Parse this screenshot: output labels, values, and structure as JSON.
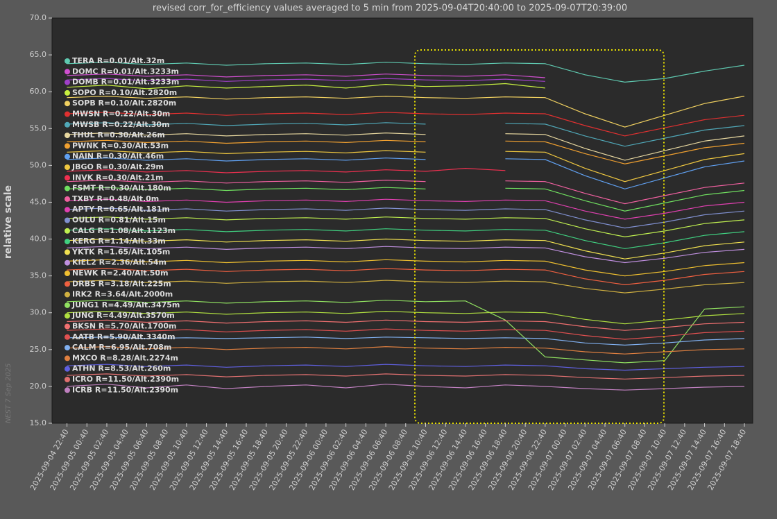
{
  "chart_data": {
    "type": "line",
    "title": "revised corr_for_efficiency values averaged to 5 min from 2025-09-04T20:40:00 to 2025-09-07T20:39:00",
    "y_label": "relative scale",
    "watermark": "NEST 7 Sep 2025",
    "xlim": [
      "2025-09-04 21:10",
      "2025-09-07 19:30"
    ],
    "ylim": [
      15,
      70
    ],
    "yticks": [
      {
        "value": 15,
        "label": "15.0"
      },
      {
        "value": 20,
        "label": "20.0"
      },
      {
        "value": 25,
        "label": "25.0"
      },
      {
        "value": 30,
        "label": "30.0"
      },
      {
        "value": 35,
        "label": "35.0"
      },
      {
        "value": 40,
        "label": "40.0"
      },
      {
        "value": 45,
        "label": "45.0"
      },
      {
        "value": 50,
        "label": "50.0"
      },
      {
        "value": 55,
        "label": "55.0"
      },
      {
        "value": 60,
        "label": "60.0"
      },
      {
        "value": 65,
        "label": "65.0"
      },
      {
        "value": 70,
        "label": "70.0"
      }
    ],
    "xticks": [
      "2025-09-04 22:40",
      "2025-09-05 00:40",
      "2025-09-05 02:40",
      "2025-09-05 04:40",
      "2025-09-05 06:40",
      "2025-09-05 08:40",
      "2025-09-05 10:40",
      "2025-09-05 12:40",
      "2025-09-05 14:40",
      "2025-09-05 16:40",
      "2025-09-05 18:40",
      "2025-09-05 20:40",
      "2025-09-05 22:40",
      "2025-09-06 00:40",
      "2025-09-06 02:40",
      "2025-09-06 04:40",
      "2025-09-06 06:40",
      "2025-09-06 08:40",
      "2025-09-06 10:40",
      "2025-09-06 12:40",
      "2025-09-06 14:40",
      "2025-09-06 16:40",
      "2025-09-06 18:40",
      "2025-09-06 20:40",
      "2025-09-06 22:40",
      "2025-09-07 00:40",
      "2025-09-07 02:40",
      "2025-09-07 04:40",
      "2025-09-07 06:40",
      "2025-09-07 08:40",
      "2025-09-07 10:40",
      "2025-09-07 12:40",
      "2025-09-07 14:40",
      "2025-09-07 16:40",
      "2025-09-07 18:40"
    ],
    "x": [
      "2025-09-04 22:40",
      "2025-09-05 02:40",
      "2025-09-05 06:40",
      "2025-09-05 10:40",
      "2025-09-05 14:40",
      "2025-09-05 18:40",
      "2025-09-05 22:40",
      "2025-09-06 02:40",
      "2025-09-06 06:40",
      "2025-09-06 10:40",
      "2025-09-06 14:40",
      "2025-09-06 18:40",
      "2025-09-06 22:40",
      "2025-09-07 02:40",
      "2025-09-07 06:40",
      "2025-09-07 10:40",
      "2025-09-07 14:40",
      "2025-09-07 18:40"
    ],
    "series": [
      {
        "name": "TERA R=0.01/Alt.32m",
        "color": "#5fc9b0",
        "values": [
          63.8,
          64.0,
          63.7,
          63.9,
          63.6,
          63.8,
          63.9,
          63.7,
          64.0,
          63.8,
          63.7,
          63.9,
          63.8,
          62.3,
          61.3,
          61.8,
          62.8,
          63.6
        ]
      },
      {
        "name": "DOMC R=0.01/Alt.3233m",
        "color": "#d04fd0",
        "values": [
          62.2,
          62.4,
          62.1,
          62.3,
          62.0,
          62.2,
          62.3,
          62.1,
          62.4,
          62.2,
          62.1,
          62.3,
          61.9,
          null,
          null,
          null,
          null,
          null
        ]
      },
      {
        "name": "DOMB R=0.01/Alt.3233m",
        "color": "#a040c8",
        "values": [
          61.6,
          61.8,
          61.5,
          61.7,
          61.4,
          61.6,
          61.7,
          61.5,
          61.8,
          61.6,
          61.5,
          61.7,
          61.4,
          null,
          null,
          null,
          null,
          null
        ]
      },
      {
        "name": "SOPO R=0.10/Alt.2820m",
        "color": "#c8f040",
        "values": [
          60.6,
          60.9,
          60.4,
          60.8,
          60.5,
          60.7,
          60.9,
          60.5,
          61.0,
          60.7,
          60.8,
          61.1,
          60.5,
          null,
          null,
          null,
          null,
          null
        ]
      },
      {
        "name": "SOPB R=0.10/Alt.2820m",
        "color": "#f0d060",
        "values": [
          59.2,
          59.4,
          59.1,
          59.3,
          59.0,
          59.2,
          59.3,
          59.1,
          59.4,
          59.2,
          59.1,
          59.3,
          59.2,
          57.0,
          55.2,
          56.8,
          58.4,
          59.4
        ]
      },
      {
        "name": "MWSN R=0.22/Alt.30m",
        "color": "#e03030",
        "values": [
          57.0,
          57.2,
          56.9,
          57.1,
          56.8,
          57.0,
          57.1,
          56.9,
          57.2,
          57.0,
          56.9,
          57.1,
          57.0,
          55.4,
          54.0,
          55.1,
          56.2,
          56.8
        ]
      },
      {
        "name": "MWSB R=0.22/Alt.30m",
        "color": "#50a8b8",
        "values": [
          55.6,
          55.8,
          55.5,
          55.7,
          55.4,
          55.6,
          55.7,
          55.5,
          55.8,
          55.6,
          null,
          55.7,
          55.6,
          54.0,
          52.6,
          53.7,
          54.8,
          55.4
        ]
      },
      {
        "name": "THUL R=0.30/Alt.26m",
        "color": "#e8d8a0",
        "values": [
          54.2,
          54.4,
          54.1,
          54.3,
          54.0,
          54.2,
          54.3,
          54.1,
          54.4,
          54.2,
          null,
          54.3,
          54.2,
          52.3,
          50.7,
          52.0,
          53.3,
          54.0
        ]
      },
      {
        "name": "PWNK R=0.30/Alt.53m",
        "color": "#f0a030",
        "values": [
          53.2,
          53.4,
          53.1,
          53.3,
          53.0,
          53.2,
          53.3,
          53.1,
          53.4,
          53.2,
          null,
          53.3,
          53.2,
          51.6,
          50.2,
          51.3,
          52.4,
          53.0
        ]
      },
      {
        "name": "NAIN R=0.30/Alt.46m",
        "color": "#60a0f0",
        "values": [
          50.8,
          51.0,
          50.7,
          50.9,
          50.6,
          50.8,
          50.9,
          50.7,
          51.0,
          50.8,
          null,
          50.9,
          50.8,
          48.6,
          46.8,
          48.3,
          49.8,
          50.6
        ]
      },
      {
        "name": "JBGO R=0.30/Alt.29m",
        "color": "#f0c840",
        "values": [
          51.8,
          52.0,
          51.7,
          51.9,
          51.6,
          51.8,
          51.9,
          51.7,
          52.0,
          51.8,
          null,
          51.9,
          51.8,
          49.6,
          47.8,
          49.3,
          50.8,
          51.6
        ]
      },
      {
        "name": "INVK R=0.30/Alt.21m",
        "color": "#f03050",
        "values": [
          49.2,
          49.4,
          49.1,
          49.3,
          49.0,
          49.2,
          49.3,
          49.1,
          49.4,
          49.2,
          49.6,
          49.3,
          null,
          null,
          null,
          null,
          null,
          null
        ]
      },
      {
        "name": "FSMT R=0.30/Alt.180m",
        "color": "#70e060",
        "values": [
          46.8,
          47.0,
          46.7,
          46.9,
          46.6,
          46.8,
          46.9,
          46.7,
          47.0,
          46.8,
          null,
          46.9,
          46.8,
          45.2,
          43.8,
          44.9,
          46.0,
          46.6
        ]
      },
      {
        "name": "TXBY R=0.48/Alt.0m",
        "color": "#f060a0",
        "values": [
          47.8,
          48.0,
          47.7,
          47.9,
          47.6,
          47.8,
          47.9,
          47.7,
          48.0,
          47.8,
          null,
          47.9,
          47.8,
          46.2,
          44.8,
          45.9,
          47.0,
          47.6
        ]
      },
      {
        "name": "APTY R=0.65/Alt.181m",
        "color": "#e040b0",
        "values": [
          45.2,
          45.4,
          45.1,
          45.3,
          45.0,
          45.2,
          45.3,
          45.1,
          45.4,
          45.2,
          45.1,
          45.3,
          45.2,
          43.8,
          42.7,
          43.5,
          44.5,
          45.0
        ]
      },
      {
        "name": "OULU R=0.81/Alt.15m",
        "color": "#8090d0",
        "values": [
          44.0,
          44.2,
          43.9,
          44.1,
          43.8,
          44.0,
          44.1,
          43.9,
          44.2,
          44.0,
          43.9,
          44.1,
          44.0,
          42.6,
          41.5,
          42.3,
          43.3,
          43.8
        ]
      },
      {
        "name": "CALG R=1.08/Alt.1123m",
        "color": "#c0f050",
        "values": [
          42.8,
          43.0,
          42.7,
          42.9,
          42.6,
          42.8,
          42.9,
          42.7,
          43.0,
          42.8,
          42.7,
          42.9,
          42.8,
          41.4,
          40.3,
          41.1,
          42.1,
          42.6
        ]
      },
      {
        "name": "KERG R=1.14/Alt.33m",
        "color": "#40d080",
        "values": [
          41.2,
          41.4,
          41.1,
          41.3,
          41.0,
          41.2,
          41.3,
          41.1,
          41.4,
          41.2,
          41.1,
          41.3,
          41.2,
          39.8,
          38.7,
          39.5,
          40.5,
          41.0
        ]
      },
      {
        "name": "YKTK R=1.65/Alt.105m",
        "color": "#f0e050",
        "values": [
          39.8,
          40.0,
          39.7,
          39.9,
          39.6,
          39.8,
          39.9,
          39.7,
          40.0,
          39.8,
          39.7,
          39.9,
          39.8,
          38.4,
          37.3,
          38.1,
          39.1,
          39.6
        ]
      },
      {
        "name": "KIEL2 R=2.36/Alt.54m",
        "color": "#c090e0",
        "values": [
          38.8,
          39.0,
          38.7,
          38.9,
          38.6,
          38.8,
          38.9,
          38.7,
          39.0,
          38.8,
          38.7,
          38.9,
          38.8,
          37.6,
          36.8,
          37.4,
          38.2,
          38.6
        ]
      },
      {
        "name": "NEWK R=2.40/Alt.50m",
        "color": "#f0c030",
        "values": [
          37.0,
          37.2,
          36.9,
          37.1,
          36.8,
          37.0,
          37.1,
          36.9,
          37.2,
          37.0,
          36.9,
          37.1,
          37.0,
          35.8,
          35.0,
          35.6,
          36.4,
          36.8
        ]
      },
      {
        "name": "DRBS R=3.18/Alt.225m",
        "color": "#f06040",
        "values": [
          35.8,
          36.0,
          35.7,
          35.9,
          35.6,
          35.8,
          35.9,
          35.7,
          36.0,
          35.8,
          35.7,
          35.9,
          35.8,
          34.6,
          33.8,
          34.4,
          35.2,
          35.6
        ]
      },
      {
        "name": "IRK2 R=3.64/Alt.2000m",
        "color": "#d0b040",
        "values": [
          34.2,
          34.4,
          34.1,
          34.3,
          34.0,
          34.2,
          34.3,
          34.1,
          34.4,
          34.2,
          34.1,
          34.3,
          34.2,
          33.3,
          32.7,
          33.2,
          33.8,
          34.1
        ]
      },
      {
        "name": "JUNG1 R=4.49/Alt.3475m",
        "color": "#90e060",
        "values": [
          31.5,
          31.7,
          31.4,
          31.6,
          31.3,
          31.5,
          31.6,
          31.4,
          31.7,
          31.5,
          31.6,
          29.0,
          24.0,
          23.6,
          23.2,
          23.5,
          30.5,
          30.8
        ]
      },
      {
        "name": "JUNG R=4.49/Alt.3570m",
        "color": "#b0e040",
        "values": [
          30.0,
          30.2,
          29.9,
          30.1,
          29.8,
          30.0,
          30.1,
          29.9,
          30.2,
          30.0,
          29.9,
          30.1,
          30.0,
          29.1,
          28.5,
          29.0,
          29.6,
          29.9
        ]
      },
      {
        "name": "BKSN R=5.70/Alt.1700m",
        "color": "#f07070",
        "values": [
          28.8,
          29.0,
          28.7,
          28.9,
          28.6,
          28.8,
          28.9,
          28.7,
          29.0,
          28.8,
          28.7,
          28.9,
          28.8,
          28.1,
          27.6,
          28.0,
          28.5,
          28.7
        ]
      },
      {
        "name": "AATB R=5.90/Alt.3340m",
        "color": "#e05050",
        "values": [
          27.6,
          27.8,
          27.5,
          27.7,
          27.4,
          27.6,
          27.7,
          27.5,
          27.8,
          27.6,
          27.5,
          27.7,
          27.6,
          26.9,
          26.4,
          26.8,
          27.3,
          27.5
        ]
      },
      {
        "name": "CALM R=6.95/Alt.708m",
        "color": "#80b0f0",
        "values": [
          26.6,
          26.7,
          26.5,
          26.6,
          26.5,
          26.6,
          26.7,
          26.5,
          26.7,
          26.6,
          26.5,
          26.6,
          26.5,
          25.9,
          25.6,
          25.9,
          26.3,
          26.5
        ]
      },
      {
        "name": "MXCO R=8.28/Alt.2274m",
        "color": "#e08040",
        "values": [
          25.2,
          25.4,
          25.1,
          25.3,
          25.0,
          25.2,
          25.3,
          25.1,
          25.4,
          25.2,
          25.1,
          25.3,
          25.2,
          24.7,
          24.4,
          24.7,
          25.0,
          25.1
        ]
      },
      {
        "name": "ATHN R=8.53/Alt.260m",
        "color": "#6060e0",
        "values": [
          22.8,
          23.0,
          22.7,
          22.9,
          22.6,
          22.8,
          22.9,
          22.7,
          23.0,
          22.8,
          22.7,
          22.9,
          22.8,
          22.4,
          22.2,
          22.4,
          22.6,
          22.7
        ]
      },
      {
        "name": "ICRO R=11.50/Alt.2390m",
        "color": "#e07070",
        "values": [
          21.5,
          21.7,
          21.4,
          21.6,
          21.3,
          21.5,
          21.6,
          21.4,
          21.7,
          21.5,
          21.4,
          21.6,
          21.5,
          21.2,
          21.0,
          21.2,
          21.4,
          21.5
        ]
      },
      {
        "name": "ICRB R=11.50/Alt.2390m",
        "color": "#c080c0",
        "values": [
          20.0,
          20.3,
          19.8,
          20.2,
          19.7,
          20.0,
          20.2,
          19.8,
          20.3,
          20.0,
          19.8,
          20.2,
          20.0,
          19.7,
          19.5,
          19.7,
          19.9,
          20.0
        ]
      }
    ]
  }
}
